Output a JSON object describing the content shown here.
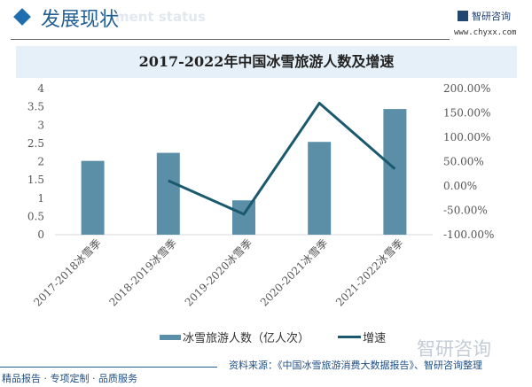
{
  "header": {
    "title": "发展现状",
    "ghost_text": "ment status"
  },
  "logo": {
    "name": "智研咨询",
    "url": "www.chyxx.com"
  },
  "footer": {
    "tagline": "精品报告 · 专项定制 · 品质服务",
    "source": "资料来源：《中国冰雪旅游消费大数据报告》、智研咨询整理",
    "watermark": "智研咨询"
  },
  "colors": {
    "bar": "#5b8fa8",
    "line": "#1b5a6e",
    "title_band": "#e6f0f8",
    "accent": "#1f6fb0"
  },
  "chart_data": {
    "type": "bar+line",
    "title": "2017-2022年中国冰雪旅游人数及增速",
    "categories": [
      "2017-2018冰雪季",
      "2018-2019冰雪季",
      "2019-2020冰雪季",
      "2020-2021冰雪季",
      "2021-2022冰雪季"
    ],
    "series": [
      {
        "name": "冰雪旅游人数（亿人次）",
        "type": "bar",
        "axis": "left",
        "values": [
          2.02,
          2.24,
          0.94,
          2.54,
          3.44
        ]
      },
      {
        "name": "增速",
        "type": "line",
        "axis": "right",
        "values": [
          null,
          11.0,
          -58.0,
          170.0,
          35.0
        ]
      }
    ],
    "y_left": {
      "min": 0,
      "max": 4,
      "ticks": [
        "0",
        "0.5",
        "1",
        "1.5",
        "2",
        "2.5",
        "3",
        "3.5",
        "4"
      ]
    },
    "y_right": {
      "min": -100,
      "max": 200,
      "ticks": [
        "-100.00%",
        "-50.00%",
        "0.00%",
        "50.00%",
        "100.00%",
        "150.00%",
        "200.00%"
      ]
    },
    "grid": false,
    "legend": "bottom"
  }
}
